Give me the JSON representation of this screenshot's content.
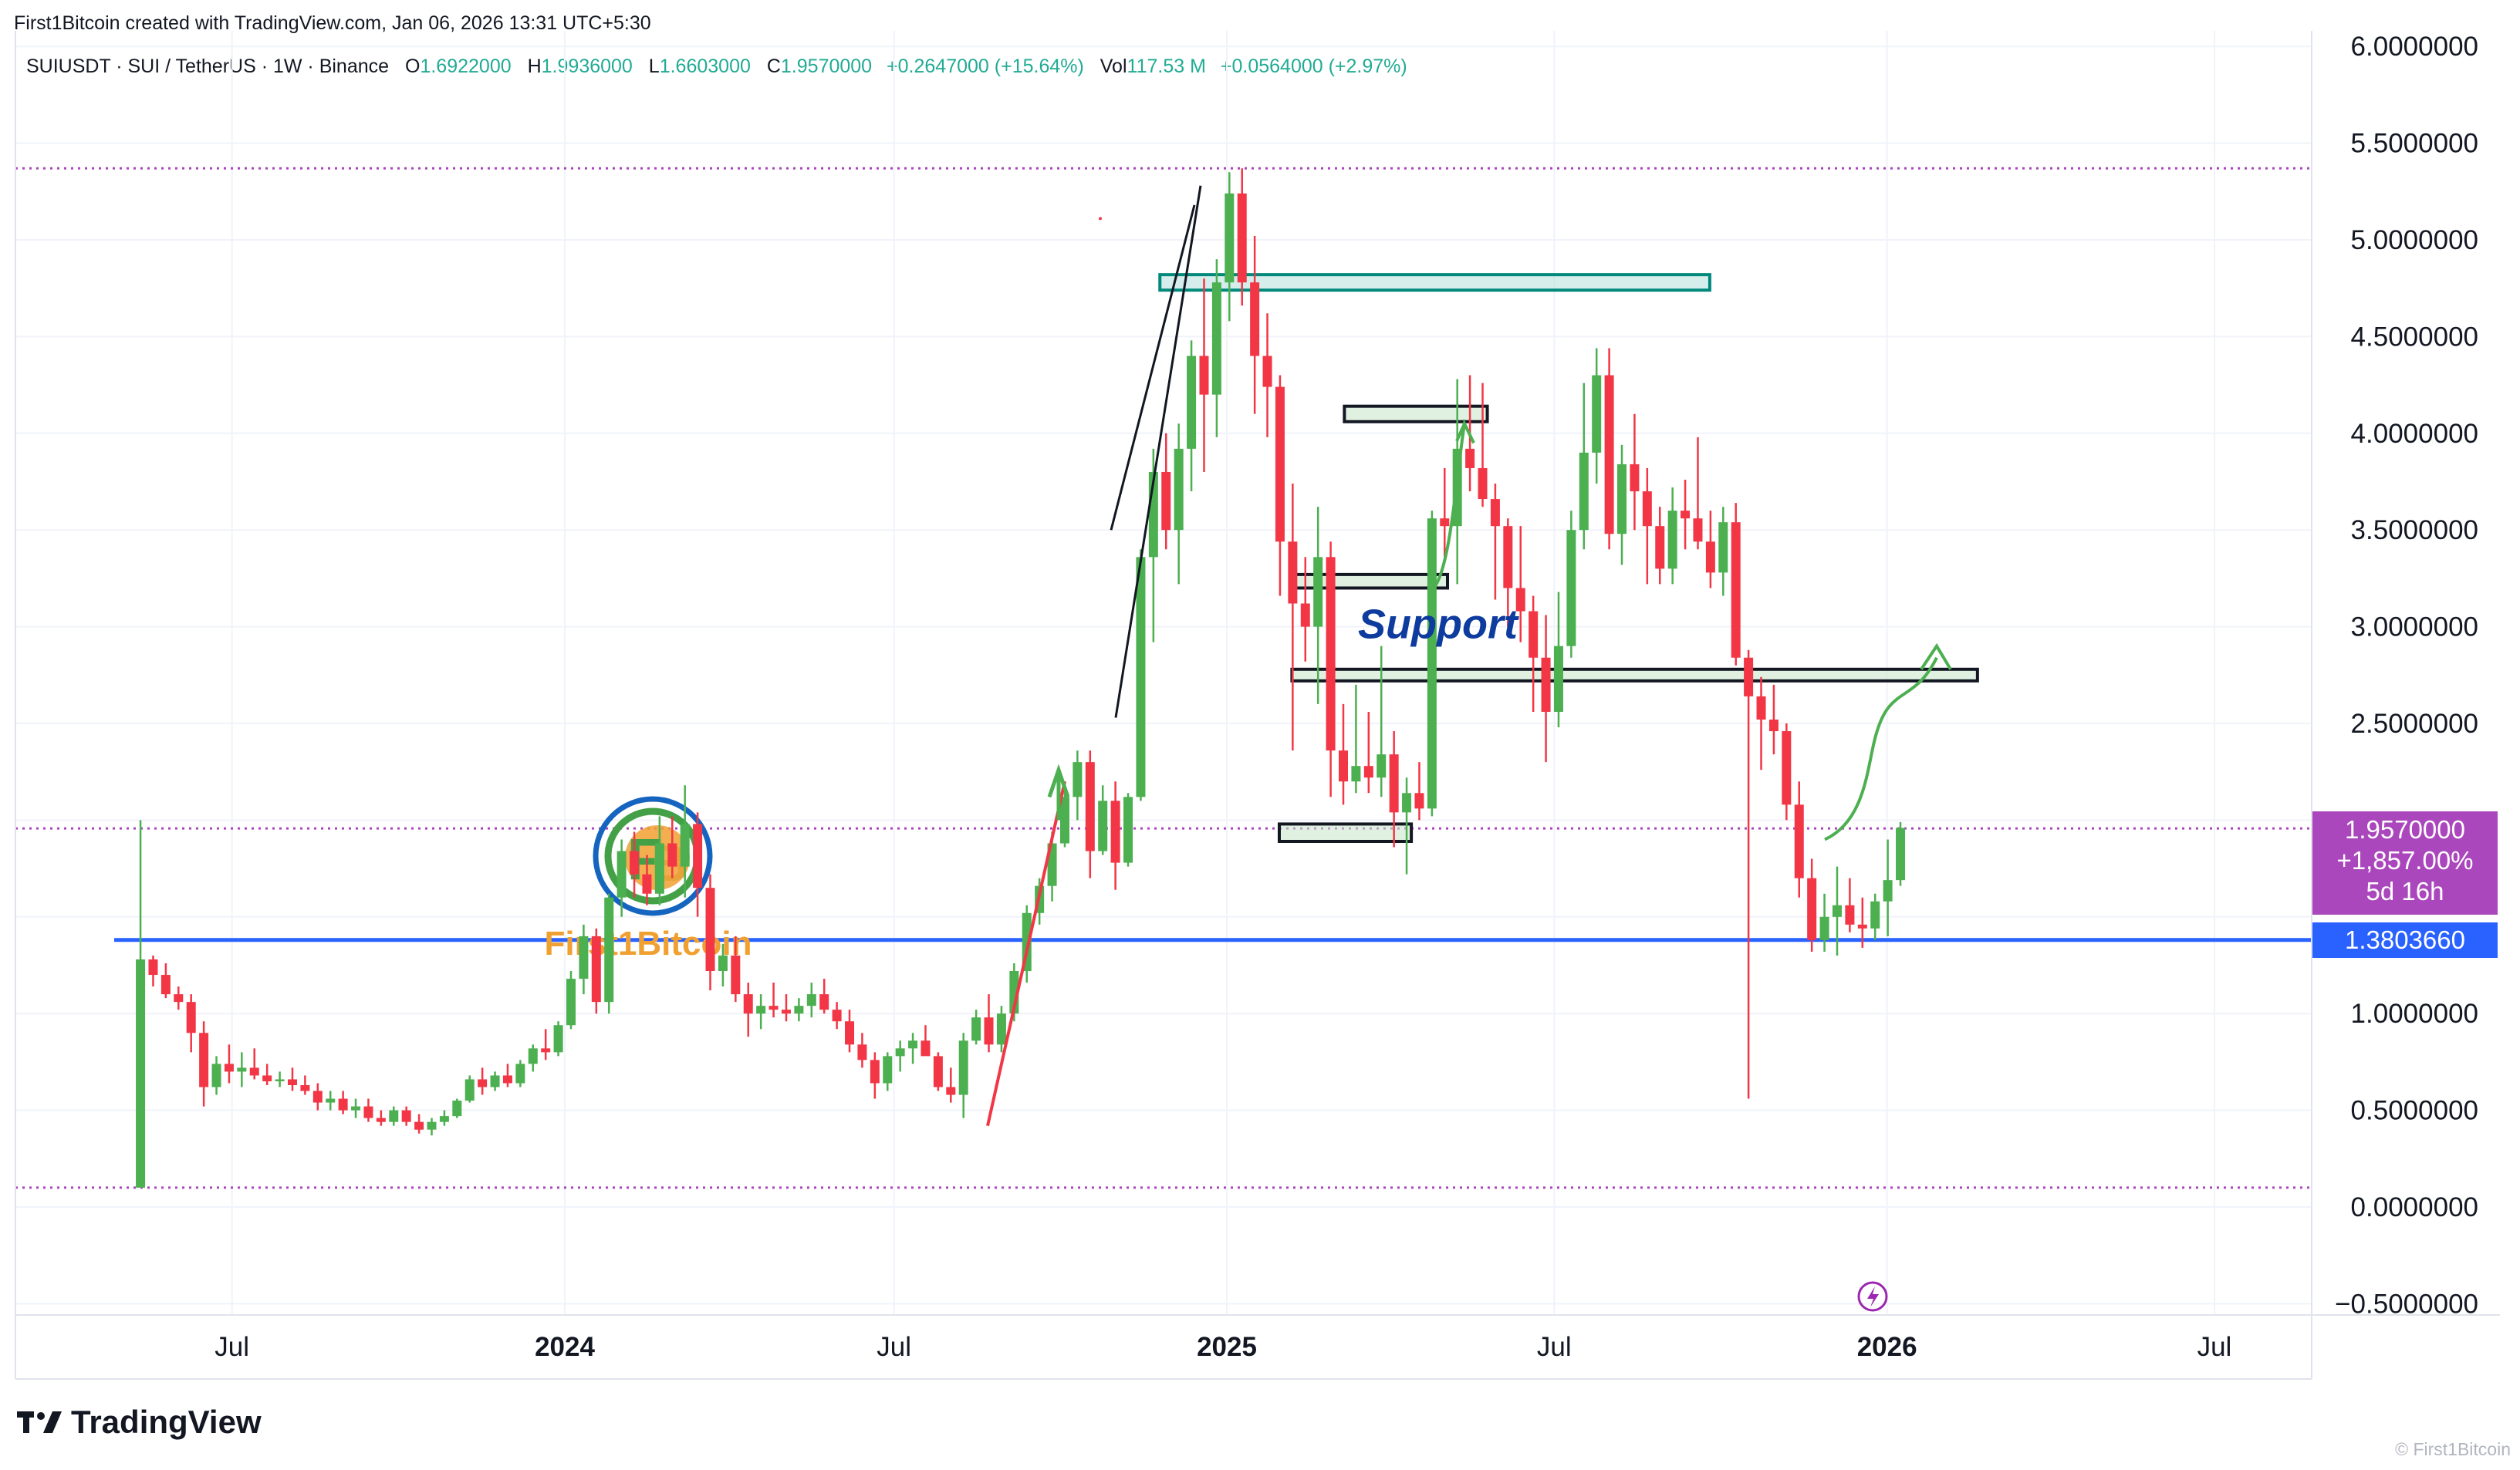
{
  "header": {
    "creator_text": "First1Bitcoin created with TradingView.com, Jan 06, 2026 13:31 UTC+5:30",
    "symbol": "SUIUSDT · SUI / TetherUS · 1W · Binance",
    "open_label": "O",
    "open": "1.6922000",
    "high_label": "H",
    "high": "1.9936000",
    "low_label": "L",
    "low": "1.6603000",
    "close_label": "C",
    "close": "1.9570000",
    "change": "+0.2647000 (+15.64%)",
    "vol_label": "Vol",
    "vol": "117.53 M",
    "vol_change": "+0.0564000 (+2.97%)"
  },
  "price_tags": {
    "last_price": "1.9570000",
    "last_change": "+1,857.00%",
    "countdown": "5d 16h",
    "support_line": "1.3803660"
  },
  "colors": {
    "up": "#4caf50",
    "down": "#f23645",
    "support_line": "#2962ff",
    "last_price_tag": "#9c27b0",
    "zone_teal": "#00897b",
    "zone_fill": "#e8f5e9",
    "arrow_green": "#4caf50",
    "arrow_red": "#f23645",
    "annotation_text": "#0d3b9e",
    "dotted_purple": "#ab47bc"
  },
  "annotations": {
    "support_text": "Support",
    "watermark_logo_text": "First1Bitcoin"
  },
  "branding": {
    "footer_logo": "TradingView",
    "footer_watermark": "© First1Bitcoin"
  },
  "chart_data": {
    "type": "candlestick",
    "timeframe": "1W",
    "y_axis": {
      "ticks": [
        "6.0000000",
        "5.5000000",
        "5.0000000",
        "4.5000000",
        "4.0000000",
        "3.5000000",
        "3.0000000",
        "2.5000000",
        "1.0000000",
        "0.5000000",
        "0.0000000",
        "−0.5000000"
      ],
      "tick_values": [
        6.0,
        5.5,
        5.0,
        4.5,
        4.0,
        3.5,
        3.0,
        2.5,
        1.0,
        0.5,
        0.0,
        -0.5
      ]
    },
    "x_axis": {
      "ticks": [
        {
          "label": "Jul",
          "date": "2023-07-01",
          "bold": false
        },
        {
          "label": "2024",
          "date": "2024-01-01",
          "bold": true
        },
        {
          "label": "Jul",
          "date": "2024-07-01",
          "bold": false
        },
        {
          "label": "2025",
          "date": "2025-01-01",
          "bold": true
        },
        {
          "label": "Jul",
          "date": "2025-07-01",
          "bold": false
        },
        {
          "label": "2026",
          "date": "2026-01-01",
          "bold": true
        },
        {
          "label": "Jul",
          "date": "2026-07-01",
          "bold": false
        }
      ]
    },
    "horizontal_lines": [
      {
        "name": "all-time-high",
        "value": 5.37,
        "style": "dotted"
      },
      {
        "name": "last-price",
        "value": 1.957,
        "style": "dotted"
      },
      {
        "name": "support",
        "value": 1.380366,
        "style": "solid"
      },
      {
        "name": "all-time-low",
        "value": 0.1,
        "style": "dotted"
      }
    ],
    "zones": [
      {
        "name": "resistance-zone-top",
        "date_start": "2024-11-25",
        "date_end": "2025-09-25",
        "low": 4.74,
        "high": 4.82
      },
      {
        "name": "zone-upper",
        "date_start": "2025-03-07",
        "date_end": "2025-05-25",
        "low": 4.06,
        "high": 4.14
      },
      {
        "name": "zone-mid",
        "date_start": "2025-02-06",
        "date_end": "2025-05-03",
        "low": 3.2,
        "high": 3.27
      },
      {
        "name": "support-zone",
        "date_start": "2025-02-06",
        "date_end": "2026-02-20",
        "low": 2.72,
        "high": 2.78
      },
      {
        "name": "zone-low",
        "date_start": "2025-01-30",
        "date_end": "2025-04-13",
        "low": 1.89,
        "high": 1.98
      }
    ],
    "candles": [
      [
        "2023-05-08",
        0.1,
        2.0,
        0.1,
        1.28
      ],
      [
        "2023-05-15",
        1.28,
        1.3,
        1.14,
        1.2
      ],
      [
        "2023-05-22",
        1.2,
        1.26,
        1.08,
        1.1
      ],
      [
        "2023-05-29",
        1.1,
        1.14,
        1.02,
        1.06
      ],
      [
        "2023-06-05",
        1.06,
        1.1,
        0.8,
        0.9
      ],
      [
        "2023-06-12",
        0.9,
        0.96,
        0.52,
        0.62
      ],
      [
        "2023-06-19",
        0.62,
        0.78,
        0.58,
        0.74
      ],
      [
        "2023-06-26",
        0.74,
        0.84,
        0.64,
        0.7
      ],
      [
        "2023-07-03",
        0.7,
        0.8,
        0.62,
        0.72
      ],
      [
        "2023-07-10",
        0.72,
        0.82,
        0.66,
        0.68
      ],
      [
        "2023-07-17",
        0.68,
        0.74,
        0.63,
        0.65
      ],
      [
        "2023-07-24",
        0.65,
        0.7,
        0.62,
        0.66
      ],
      [
        "2023-07-31",
        0.66,
        0.72,
        0.6,
        0.63
      ],
      [
        "2023-08-07",
        0.63,
        0.68,
        0.58,
        0.6
      ],
      [
        "2023-08-14",
        0.6,
        0.64,
        0.5,
        0.54
      ],
      [
        "2023-08-21",
        0.54,
        0.6,
        0.5,
        0.56
      ],
      [
        "2023-08-28",
        0.56,
        0.6,
        0.48,
        0.5
      ],
      [
        "2023-09-04",
        0.5,
        0.56,
        0.46,
        0.52
      ],
      [
        "2023-09-11",
        0.52,
        0.56,
        0.44,
        0.46
      ],
      [
        "2023-09-18",
        0.46,
        0.5,
        0.42,
        0.44
      ],
      [
        "2023-09-25",
        0.44,
        0.52,
        0.42,
        0.5
      ],
      [
        "2023-10-02",
        0.5,
        0.52,
        0.42,
        0.44
      ],
      [
        "2023-10-09",
        0.44,
        0.48,
        0.38,
        0.4
      ],
      [
        "2023-10-16",
        0.4,
        0.46,
        0.37,
        0.44
      ],
      [
        "2023-10-23",
        0.44,
        0.5,
        0.42,
        0.47
      ],
      [
        "2023-10-30",
        0.47,
        0.56,
        0.46,
        0.55
      ],
      [
        "2023-11-06",
        0.55,
        0.68,
        0.54,
        0.66
      ],
      [
        "2023-11-13",
        0.66,
        0.72,
        0.58,
        0.62
      ],
      [
        "2023-11-20",
        0.62,
        0.7,
        0.6,
        0.68
      ],
      [
        "2023-11-27",
        0.68,
        0.74,
        0.62,
        0.64
      ],
      [
        "2023-12-04",
        0.64,
        0.76,
        0.62,
        0.74
      ],
      [
        "2023-12-11",
        0.74,
        0.84,
        0.7,
        0.82
      ],
      [
        "2023-12-18",
        0.82,
        0.92,
        0.76,
        0.8
      ],
      [
        "2023-12-25",
        0.8,
        0.96,
        0.78,
        0.94
      ],
      [
        "2024-01-01",
        0.94,
        1.22,
        0.92,
        1.18
      ],
      [
        "2024-01-08",
        1.18,
        1.46,
        1.1,
        1.4
      ],
      [
        "2024-01-15",
        1.4,
        1.44,
        1.0,
        1.06
      ],
      [
        "2024-01-22",
        1.06,
        1.62,
        1.0,
        1.6
      ],
      [
        "2024-01-29",
        1.6,
        1.9,
        1.5,
        1.84
      ],
      [
        "2024-02-05",
        1.84,
        1.94,
        1.6,
        1.72
      ],
      [
        "2024-02-12",
        1.72,
        1.82,
        1.56,
        1.62
      ],
      [
        "2024-02-19",
        1.62,
        2.02,
        1.56,
        1.88
      ],
      [
        "2024-02-26",
        1.88,
        2.02,
        1.7,
        1.76
      ],
      [
        "2024-03-04",
        1.76,
        2.18,
        1.6,
        1.98
      ],
      [
        "2024-03-11",
        1.98,
        2.04,
        1.5,
        1.65
      ],
      [
        "2024-03-18",
        1.65,
        1.72,
        1.12,
        1.22
      ],
      [
        "2024-03-25",
        1.22,
        1.36,
        1.14,
        1.3
      ],
      [
        "2024-04-01",
        1.3,
        1.4,
        1.06,
        1.1
      ],
      [
        "2024-04-08",
        1.1,
        1.16,
        0.88,
        1.0
      ],
      [
        "2024-04-15",
        1.0,
        1.1,
        0.92,
        1.04
      ],
      [
        "2024-04-22",
        1.04,
        1.16,
        0.98,
        1.02
      ],
      [
        "2024-04-29",
        1.02,
        1.1,
        0.96,
        1.0
      ],
      [
        "2024-05-06",
        1.0,
        1.08,
        0.96,
        1.04
      ],
      [
        "2024-05-13",
        1.04,
        1.16,
        0.98,
        1.1
      ],
      [
        "2024-05-20",
        1.1,
        1.18,
        1.0,
        1.02
      ],
      [
        "2024-05-27",
        1.02,
        1.06,
        0.92,
        0.96
      ],
      [
        "2024-06-03",
        0.96,
        1.02,
        0.8,
        0.84
      ],
      [
        "2024-06-10",
        0.84,
        0.9,
        0.72,
        0.76
      ],
      [
        "2024-06-17",
        0.76,
        0.8,
        0.56,
        0.64
      ],
      [
        "2024-06-24",
        0.64,
        0.8,
        0.6,
        0.78
      ],
      [
        "2024-07-01",
        0.78,
        0.86,
        0.7,
        0.82
      ],
      [
        "2024-07-08",
        0.82,
        0.9,
        0.74,
        0.86
      ],
      [
        "2024-07-15",
        0.86,
        0.94,
        0.8,
        0.78
      ],
      [
        "2024-07-22",
        0.78,
        0.8,
        0.6,
        0.62
      ],
      [
        "2024-07-29",
        0.62,
        0.72,
        0.54,
        0.58
      ],
      [
        "2024-08-05",
        0.58,
        0.9,
        0.46,
        0.86
      ],
      [
        "2024-08-12",
        0.86,
        1.02,
        0.84,
        0.98
      ],
      [
        "2024-08-19",
        0.98,
        1.1,
        0.8,
        0.84
      ],
      [
        "2024-08-26",
        0.84,
        1.04,
        0.8,
        1.0
      ],
      [
        "2024-09-02",
        1.0,
        1.26,
        0.96,
        1.22
      ],
      [
        "2024-09-09",
        1.22,
        1.56,
        1.16,
        1.52
      ],
      [
        "2024-09-16",
        1.52,
        1.7,
        1.46,
        1.66
      ],
      [
        "2024-09-23",
        1.66,
        1.94,
        1.58,
        1.88
      ],
      [
        "2024-09-30",
        1.88,
        2.2,
        1.86,
        2.12
      ],
      [
        "2024-10-07",
        2.12,
        2.36,
        2.0,
        2.3
      ],
      [
        "2024-10-14",
        2.3,
        2.36,
        1.7,
        1.84
      ],
      [
        "2024-10-21",
        1.84,
        2.18,
        1.82,
        2.1
      ],
      [
        "2024-10-28",
        2.1,
        2.2,
        1.64,
        1.78
      ],
      [
        "2024-11-04",
        1.78,
        2.14,
        1.76,
        2.12
      ],
      [
        "2024-11-11",
        2.12,
        3.4,
        2.1,
        3.36
      ],
      [
        "2024-11-18",
        3.36,
        3.92,
        2.92,
        3.8
      ],
      [
        "2024-11-25",
        3.8,
        4.0,
        3.4,
        3.5
      ],
      [
        "2024-12-02",
        3.5,
        4.05,
        3.22,
        3.92
      ],
      [
        "2024-12-09",
        3.92,
        4.48,
        3.7,
        4.4
      ],
      [
        "2024-12-16",
        4.4,
        4.8,
        3.8,
        4.2
      ],
      [
        "2024-12-23",
        4.2,
        4.9,
        3.98,
        4.78
      ],
      [
        "2024-12-30",
        4.78,
        5.35,
        4.58,
        5.24
      ],
      [
        "2025-01-06",
        5.24,
        5.37,
        4.66,
        4.78
      ],
      [
        "2025-01-13",
        4.78,
        5.02,
        4.1,
        4.4
      ],
      [
        "2025-01-20",
        4.4,
        4.62,
        3.98,
        4.24
      ],
      [
        "2025-01-27",
        4.24,
        4.3,
        3.16,
        3.44
      ],
      [
        "2025-02-03",
        3.44,
        3.74,
        2.36,
        3.12
      ],
      [
        "2025-02-10",
        3.12,
        3.36,
        2.82,
        3.0
      ],
      [
        "2025-02-17",
        3.0,
        3.62,
        2.6,
        3.36
      ],
      [
        "2025-02-24",
        3.36,
        3.44,
        2.12,
        2.36
      ],
      [
        "2025-03-03",
        2.36,
        2.6,
        2.08,
        2.2
      ],
      [
        "2025-03-10",
        2.2,
        2.7,
        2.14,
        2.28
      ],
      [
        "2025-03-17",
        2.28,
        2.56,
        2.14,
        2.22
      ],
      [
        "2025-03-24",
        2.22,
        2.9,
        2.12,
        2.34
      ],
      [
        "2025-03-31",
        2.34,
        2.46,
        1.86,
        2.04
      ],
      [
        "2025-04-07",
        2.04,
        2.22,
        1.72,
        2.14
      ],
      [
        "2025-04-14",
        2.14,
        2.3,
        2.0,
        2.06
      ],
      [
        "2025-04-21",
        2.06,
        3.6,
        2.02,
        3.56
      ],
      [
        "2025-04-28",
        3.56,
        3.82,
        3.36,
        3.52
      ],
      [
        "2025-05-05",
        3.52,
        4.28,
        3.22,
        3.92
      ],
      [
        "2025-05-12",
        3.92,
        4.3,
        3.7,
        3.82
      ],
      [
        "2025-05-19",
        3.82,
        4.26,
        3.62,
        3.66
      ],
      [
        "2025-05-26",
        3.66,
        3.74,
        3.14,
        3.52
      ],
      [
        "2025-06-02",
        3.52,
        3.56,
        3.0,
        3.2
      ],
      [
        "2025-06-09",
        3.2,
        3.52,
        2.92,
        3.08
      ],
      [
        "2025-06-16",
        3.08,
        3.16,
        2.56,
        2.84
      ],
      [
        "2025-06-23",
        2.84,
        3.06,
        2.3,
        2.56
      ],
      [
        "2025-06-30",
        2.56,
        3.18,
        2.48,
        2.9
      ],
      [
        "2025-07-07",
        2.9,
        3.6,
        2.84,
        3.5
      ],
      [
        "2025-07-14",
        3.5,
        4.26,
        3.4,
        3.9
      ],
      [
        "2025-07-21",
        3.9,
        4.44,
        3.74,
        4.3
      ],
      [
        "2025-07-28",
        4.3,
        4.44,
        3.4,
        3.48
      ],
      [
        "2025-08-04",
        3.48,
        3.94,
        3.32,
        3.84
      ],
      [
        "2025-08-11",
        3.84,
        4.1,
        3.5,
        3.7
      ],
      [
        "2025-08-18",
        3.7,
        3.82,
        3.22,
        3.52
      ],
      [
        "2025-08-25",
        3.52,
        3.62,
        3.22,
        3.3
      ],
      [
        "2025-09-01",
        3.3,
        3.72,
        3.22,
        3.6
      ],
      [
        "2025-09-08",
        3.6,
        3.76,
        3.4,
        3.56
      ],
      [
        "2025-09-15",
        3.56,
        3.98,
        3.4,
        3.44
      ],
      [
        "2025-09-22",
        3.44,
        3.6,
        3.2,
        3.28
      ],
      [
        "2025-09-29",
        3.28,
        3.62,
        3.16,
        3.54
      ],
      [
        "2025-10-06",
        3.54,
        3.64,
        2.8,
        2.84
      ],
      [
        "2025-10-13",
        2.84,
        2.88,
        0.56,
        2.64
      ],
      [
        "2025-10-20",
        2.64,
        2.74,
        2.26,
        2.52
      ],
      [
        "2025-10-27",
        2.52,
        2.7,
        2.34,
        2.46
      ],
      [
        "2025-11-03",
        2.46,
        2.5,
        2.0,
        2.08
      ],
      [
        "2025-11-10",
        2.08,
        2.2,
        1.6,
        1.7
      ],
      [
        "2025-11-17",
        1.7,
        1.8,
        1.32,
        1.38
      ],
      [
        "2025-11-24",
        1.38,
        1.62,
        1.32,
        1.5
      ],
      [
        "2025-12-01",
        1.5,
        1.76,
        1.3,
        1.56
      ],
      [
        "2025-12-08",
        1.56,
        1.7,
        1.42,
        1.46
      ],
      [
        "2025-12-15",
        1.46,
        1.6,
        1.34,
        1.44
      ],
      [
        "2025-12-22",
        1.44,
        1.62,
        1.38,
        1.58
      ],
      [
        "2025-12-29",
        1.58,
        1.9,
        1.4,
        1.69
      ],
      [
        "2026-01-05",
        1.69,
        1.99,
        1.66,
        1.96
      ]
    ]
  }
}
